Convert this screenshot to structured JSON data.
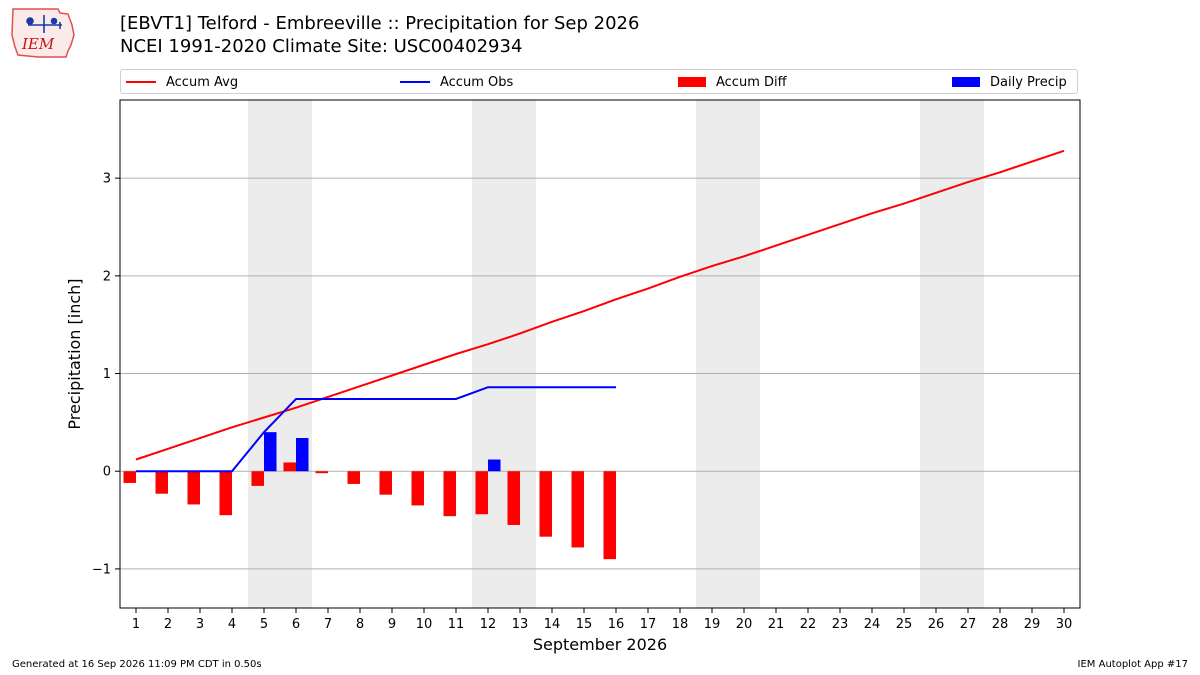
{
  "header": {
    "title_line1": "[EBVT1] Telford - Embreeville :: Precipitation for Sep 2026",
    "title_line2": "NCEI 1991-2020 Climate Site: USC00402934",
    "logo_text": "IEM"
  },
  "footer": {
    "generated": "Generated at 16 Sep 2026 11:09 PM CDT in 0.50s",
    "app": "IEM Autoplot App #17"
  },
  "colors": {
    "accum_avg": "#ff0000",
    "accum_obs": "#0000ff",
    "accum_diff": "#ff0000",
    "daily_precip": "#0000ff",
    "weekend_shade": "#ececec",
    "grid": "#b0b0b0"
  },
  "chart_data": {
    "type": "bar",
    "xlabel": "September 2026",
    "ylabel": "Precipitation [inch]",
    "ylim": [
      -1.4,
      3.8
    ],
    "yticks": [
      -1,
      0,
      1,
      2,
      3
    ],
    "ytick_labels": [
      "−1",
      "0",
      "1",
      "2",
      "3"
    ],
    "grid": "horizontal",
    "legend_position": "top",
    "days": [
      1,
      2,
      3,
      4,
      5,
      6,
      7,
      8,
      9,
      10,
      11,
      12,
      13,
      14,
      15,
      16,
      17,
      18,
      19,
      20,
      21,
      22,
      23,
      24,
      25,
      26,
      27,
      28,
      29,
      30
    ],
    "weekend_shaded_days": [
      [
        5,
        6
      ],
      [
        12,
        13
      ],
      [
        19,
        20
      ],
      [
        26,
        27
      ]
    ],
    "series": [
      {
        "name": "Accum Avg",
        "kind": "line",
        "values": [
          0.12,
          0.23,
          0.34,
          0.45,
          0.55,
          0.65,
          0.76,
          0.87,
          0.98,
          1.09,
          1.2,
          1.3,
          1.41,
          1.53,
          1.64,
          1.76,
          1.87,
          1.99,
          2.1,
          2.2,
          2.31,
          2.42,
          2.53,
          2.64,
          2.74,
          2.85,
          2.96,
          3.06,
          3.17,
          3.28
        ]
      },
      {
        "name": "Accum Obs",
        "kind": "line",
        "values": [
          0.0,
          0.0,
          0.0,
          0.0,
          0.4,
          0.74,
          0.74,
          0.74,
          0.74,
          0.74,
          0.74,
          0.86,
          0.86,
          0.86,
          0.86,
          0.86
        ]
      },
      {
        "name": "Accum Diff",
        "kind": "bar",
        "values": [
          -0.12,
          -0.23,
          -0.34,
          -0.45,
          -0.15,
          0.09,
          -0.02,
          -0.13,
          -0.24,
          -0.35,
          -0.46,
          -0.44,
          -0.55,
          -0.67,
          -0.78,
          -0.9
        ]
      },
      {
        "name": "Daily Precip",
        "kind": "bar",
        "values": [
          0,
          0,
          0,
          0,
          0.4,
          0.34,
          0,
          0,
          0,
          0,
          0,
          0.12,
          0,
          0,
          0,
          0
        ]
      }
    ]
  }
}
